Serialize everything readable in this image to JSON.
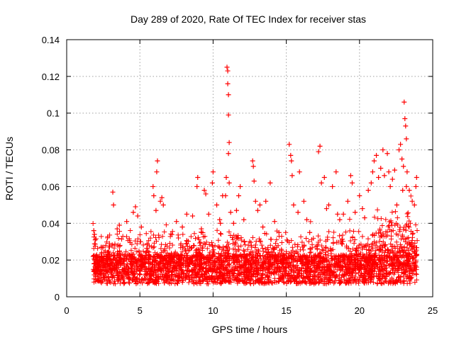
{
  "chart_data": {
    "type": "scatter",
    "title": "Day 289 of 2020, Rate Of TEC Index for receiver stas",
    "xlabel": "GPS time / hours",
    "ylabel": "ROTI / TECUs",
    "xlim": [
      0,
      25
    ],
    "ylim": [
      0,
      0.14
    ],
    "x_ticks": [
      {
        "value": 0,
        "label": "0"
      },
      {
        "value": 5,
        "label": "5"
      },
      {
        "value": 10,
        "label": "10"
      },
      {
        "value": 15,
        "label": "15"
      },
      {
        "value": 20,
        "label": "20"
      },
      {
        "value": 25,
        "label": "25"
      }
    ],
    "y_ticks": [
      {
        "value": 0,
        "label": "0"
      },
      {
        "value": 0.02,
        "label": "0.02"
      },
      {
        "value": 0.04,
        "label": "0.04"
      },
      {
        "value": 0.06,
        "label": "0.06"
      },
      {
        "value": 0.08,
        "label": "0.08"
      },
      {
        "value": 0.1,
        "label": "0.1"
      },
      {
        "value": 0.12,
        "label": "0.12"
      },
      {
        "value": 0.14,
        "label": "0.14"
      }
    ],
    "grid": true,
    "marker": "+",
    "marker_color": "#ff0000",
    "x_data_range": [
      1.8,
      23.95
    ],
    "series": [
      {
        "name": "ROTI",
        "points": [
          [
            1.85,
            0.036
          ],
          [
            1.9,
            0.034
          ],
          [
            1.95,
            0.031
          ],
          [
            3.15,
            0.057
          ],
          [
            3.2,
            0.05
          ],
          [
            3.45,
            0.037
          ],
          [
            3.6,
            0.039
          ],
          [
            4.1,
            0.041
          ],
          [
            4.55,
            0.046
          ],
          [
            4.7,
            0.049
          ],
          [
            4.85,
            0.044
          ],
          [
            5.1,
            0.038
          ],
          [
            5.9,
            0.06
          ],
          [
            5.95,
            0.055
          ],
          [
            6.1,
            0.047
          ],
          [
            6.15,
            0.068
          ],
          [
            6.2,
            0.074
          ],
          [
            6.4,
            0.052
          ],
          [
            6.5,
            0.054
          ],
          [
            6.6,
            0.05
          ],
          [
            7.5,
            0.041
          ],
          [
            7.9,
            0.038
          ],
          [
            8.2,
            0.045
          ],
          [
            8.6,
            0.044
          ],
          [
            8.9,
            0.06
          ],
          [
            8.95,
            0.065
          ],
          [
            9.2,
            0.037
          ],
          [
            9.4,
            0.058
          ],
          [
            9.5,
            0.056
          ],
          [
            9.7,
            0.045
          ],
          [
            9.95,
            0.062
          ],
          [
            10.0,
            0.068
          ],
          [
            10.25,
            0.05
          ],
          [
            10.45,
            0.042
          ],
          [
            10.5,
            0.04
          ],
          [
            10.65,
            0.055
          ],
          [
            10.85,
            0.055
          ],
          [
            10.9,
            0.065
          ],
          [
            10.95,
            0.125
          ],
          [
            11.0,
            0.123
          ],
          [
            11.0,
            0.116
          ],
          [
            11.05,
            0.11
          ],
          [
            11.05,
            0.099
          ],
          [
            11.1,
            0.084
          ],
          [
            11.05,
            0.078
          ],
          [
            11.1,
            0.062
          ],
          [
            11.2,
            0.046
          ],
          [
            11.4,
            0.04
          ],
          [
            11.6,
            0.047
          ],
          [
            11.75,
            0.055
          ],
          [
            11.85,
            0.06
          ],
          [
            12.1,
            0.042
          ],
          [
            12.7,
            0.074
          ],
          [
            12.75,
            0.071
          ],
          [
            12.8,
            0.063
          ],
          [
            12.9,
            0.052
          ],
          [
            13.05,
            0.047
          ],
          [
            13.2,
            0.05
          ],
          [
            13.4,
            0.038
          ],
          [
            13.6,
            0.052
          ],
          [
            13.9,
            0.062
          ],
          [
            14.2,
            0.041
          ],
          [
            14.5,
            0.035
          ],
          [
            15.2,
            0.083
          ],
          [
            15.3,
            0.077
          ],
          [
            15.35,
            0.074
          ],
          [
            15.4,
            0.066
          ],
          [
            15.5,
            0.05
          ],
          [
            15.8,
            0.046
          ],
          [
            15.9,
            0.068
          ],
          [
            16.2,
            0.052
          ],
          [
            16.4,
            0.042
          ],
          [
            16.6,
            0.035
          ],
          [
            17.2,
            0.079
          ],
          [
            17.3,
            0.082
          ],
          [
            17.4,
            0.062
          ],
          [
            17.6,
            0.065
          ],
          [
            17.75,
            0.048
          ],
          [
            17.9,
            0.05
          ],
          [
            18.15,
            0.06
          ],
          [
            18.4,
            0.068
          ],
          [
            18.5,
            0.045
          ],
          [
            18.65,
            0.042
          ],
          [
            18.9,
            0.045
          ],
          [
            19.2,
            0.052
          ],
          [
            19.4,
            0.066
          ],
          [
            19.5,
            0.062
          ],
          [
            19.7,
            0.046
          ],
          [
            20.0,
            0.055
          ],
          [
            20.2,
            0.048
          ],
          [
            20.35,
            0.043
          ],
          [
            20.6,
            0.058
          ],
          [
            20.8,
            0.062
          ],
          [
            20.9,
            0.068
          ],
          [
            21.0,
            0.074
          ],
          [
            21.15,
            0.077
          ],
          [
            21.3,
            0.065
          ],
          [
            21.45,
            0.07
          ],
          [
            21.6,
            0.08
          ],
          [
            21.7,
            0.066
          ],
          [
            21.9,
            0.078
          ],
          [
            22.0,
            0.068
          ],
          [
            22.1,
            0.06
          ],
          [
            22.25,
            0.064
          ],
          [
            22.4,
            0.069
          ],
          [
            22.55,
            0.05
          ],
          [
            22.7,
            0.08
          ],
          [
            22.8,
            0.083
          ],
          [
            22.9,
            0.075
          ],
          [
            23.0,
            0.071
          ],
          [
            23.05,
            0.106
          ],
          [
            23.1,
            0.097
          ],
          [
            23.15,
            0.093
          ],
          [
            23.2,
            0.086
          ],
          [
            23.25,
            0.068
          ],
          [
            23.4,
            0.058
          ],
          [
            23.6,
            0.052
          ],
          [
            23.75,
            0.05
          ],
          [
            23.85,
            0.06
          ],
          [
            23.9,
            0.065
          ],
          [
            23.2,
            0.06
          ],
          [
            22.95,
            0.058
          ]
        ]
      }
    ]
  }
}
